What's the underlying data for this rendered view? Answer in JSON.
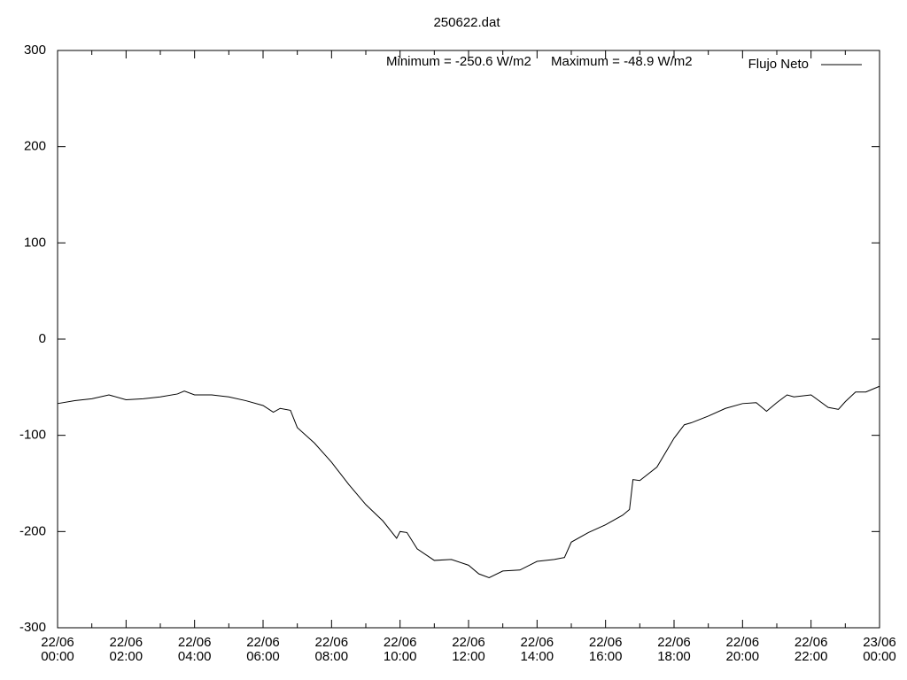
{
  "chart_data": {
    "type": "line",
    "title": "250622.dat",
    "annotations": [
      "Minimum = -250.6 W/m2",
      "Maximum = -48.9 W/m2"
    ],
    "x": [
      0,
      0.5,
      1,
      1.5,
      2,
      2.5,
      3,
      3.5,
      3.7,
      4,
      4.5,
      5,
      5.5,
      6,
      6.3,
      6.5,
      6.8,
      7,
      7.5,
      8,
      8.5,
      9,
      9.5,
      9.9,
      10,
      10.2,
      10.5,
      11,
      11.5,
      12,
      12.3,
      12.6,
      13,
      13.5,
      14,
      14.5,
      14.8,
      15,
      15.5,
      16,
      16.5,
      16.7,
      16.8,
      17,
      17.5,
      18,
      18.3,
      18.5,
      19,
      19.5,
      20,
      20.4,
      20.7,
      21,
      21.3,
      21.5,
      22,
      22.5,
      22.8,
      23,
      23.3,
      23.6,
      24
    ],
    "series": [
      {
        "name": "Flujo Neto",
        "color": "#000000",
        "values": [
          -67,
          -64,
          -62,
          -58,
          -63,
          -62,
          -60,
          -57,
          -54,
          -58,
          -58,
          -60,
          -64,
          -69,
          -76,
          -72,
          -74,
          -92,
          -108,
          -128,
          -151,
          -172,
          -189,
          -207,
          -200,
          -201,
          -218,
          -230,
          -229,
          -235,
          -244,
          -248,
          -241,
          -240,
          -231,
          -229,
          -227,
          -211,
          -201,
          -193,
          -183,
          -177,
          -146,
          -147,
          -133,
          -103,
          -89,
          -87,
          -80,
          -72,
          -67,
          -66,
          -75,
          -66,
          -58,
          -60,
          -58,
          -71,
          -73,
          -65,
          -55,
          -55,
          -49
        ]
      }
    ],
    "xlim": [
      0,
      24
    ],
    "xticks": [
      {
        "value": 0,
        "label": "22/06\n00:00"
      },
      {
        "value": 2,
        "label": "22/06\n02:00"
      },
      {
        "value": 4,
        "label": "22/06\n04:00"
      },
      {
        "value": 6,
        "label": "22/06\n06:00"
      },
      {
        "value": 8,
        "label": "22/06\n08:00"
      },
      {
        "value": 10,
        "label": "22/06\n10:00"
      },
      {
        "value": 12,
        "label": "22/06\n12:00"
      },
      {
        "value": 14,
        "label": "22/06\n14:00"
      },
      {
        "value": 16,
        "label": "22/06\n16:00"
      },
      {
        "value": 18,
        "label": "22/06\n18:00"
      },
      {
        "value": 20,
        "label": "22/06\n20:00"
      },
      {
        "value": 22,
        "label": "22/06\n22:00"
      },
      {
        "value": 24,
        "label": "23/06\n00:00"
      }
    ],
    "xminorticks": [
      1,
      3,
      5,
      7,
      9,
      11,
      13,
      15,
      17,
      19,
      21,
      23
    ],
    "ylim": [
      -300,
      300
    ],
    "yticks": [
      -300,
      -200,
      -100,
      0,
      100,
      200,
      300
    ],
    "grid": false,
    "legend": "top-right"
  }
}
